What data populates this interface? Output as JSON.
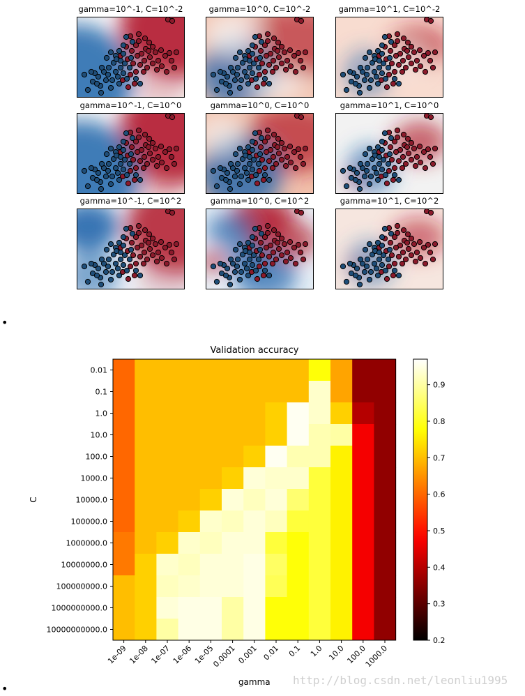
{
  "rbf_panels": {
    "rows": [
      [
        {
          "title": "gamma=10^-1, C=10^-2"
        },
        {
          "title": "gamma=10^0, C=10^-2"
        },
        {
          "title": "gamma=10^1, C=10^-2"
        }
      ],
      [
        {
          "title": "gamma=10^-1, C=10^0"
        },
        {
          "title": "gamma=10^0, C=10^0"
        },
        {
          "title": "gamma=10^1, C=10^0"
        }
      ],
      [
        {
          "title": "gamma=10^-1, C=10^2"
        },
        {
          "title": "gamma=10^0, C=10^2"
        },
        {
          "title": "gamma=10^1, C=10^2"
        }
      ]
    ],
    "class_colors": {
      "positive": "#8b1a2b",
      "negative": "#1f4e79"
    },
    "background_colors": {
      "red": "#b2182b",
      "white": "#f7f7f7",
      "blue": "#2166ac"
    }
  },
  "chart_data": {
    "type": "heatmap",
    "title": "Validation accuracy",
    "xlabel": "gamma",
    "ylabel": "C",
    "x": [
      "1e-09",
      "1e-08",
      "1e-07",
      "1e-06",
      "1e-05",
      "0.0001",
      "0.001",
      "0.01",
      "0.1",
      "1.0",
      "10.0",
      "100.0",
      "1000.0"
    ],
    "y": [
      "0.01",
      "0.1",
      "1.0",
      "10.0",
      "100.0",
      "1000.0",
      "10000.0",
      "100000.0",
      "1000000.0",
      "10000000.0",
      "100000000.0",
      "1000000000.0",
      "10000000000.0"
    ],
    "values": [
      [
        0.6,
        0.7,
        0.7,
        0.7,
        0.7,
        0.7,
        0.7,
        0.7,
        0.7,
        0.78,
        0.67,
        0.36,
        0.36
      ],
      [
        0.6,
        0.7,
        0.7,
        0.7,
        0.7,
        0.7,
        0.7,
        0.7,
        0.7,
        0.93,
        0.67,
        0.36,
        0.36
      ],
      [
        0.6,
        0.7,
        0.7,
        0.7,
        0.7,
        0.7,
        0.7,
        0.72,
        0.96,
        0.93,
        0.72,
        0.4,
        0.36
      ],
      [
        0.6,
        0.7,
        0.7,
        0.7,
        0.7,
        0.7,
        0.7,
        0.72,
        0.96,
        0.91,
        0.9,
        0.47,
        0.36
      ],
      [
        0.6,
        0.7,
        0.7,
        0.7,
        0.7,
        0.7,
        0.72,
        0.96,
        0.91,
        0.91,
        0.76,
        0.47,
        0.36
      ],
      [
        0.6,
        0.7,
        0.7,
        0.7,
        0.7,
        0.72,
        0.94,
        0.93,
        0.93,
        0.82,
        0.76,
        0.47,
        0.36
      ],
      [
        0.6,
        0.7,
        0.7,
        0.7,
        0.72,
        0.94,
        0.92,
        0.94,
        0.86,
        0.82,
        0.76,
        0.47,
        0.36
      ],
      [
        0.6,
        0.7,
        0.7,
        0.72,
        0.93,
        0.92,
        0.94,
        0.92,
        0.82,
        0.82,
        0.76,
        0.47,
        0.36
      ],
      [
        0.62,
        0.7,
        0.72,
        0.93,
        0.92,
        0.94,
        0.94,
        0.82,
        0.78,
        0.82,
        0.76,
        0.47,
        0.36
      ],
      [
        0.62,
        0.72,
        0.93,
        0.92,
        0.94,
        0.94,
        0.95,
        0.85,
        0.78,
        0.82,
        0.76,
        0.47,
        0.36
      ],
      [
        0.7,
        0.72,
        0.92,
        0.93,
        0.94,
        0.94,
        0.95,
        0.84,
        0.78,
        0.82,
        0.76,
        0.47,
        0.36
      ],
      [
        0.7,
        0.72,
        0.94,
        0.95,
        0.95,
        0.9,
        0.95,
        0.78,
        0.78,
        0.82,
        0.76,
        0.47,
        0.36
      ],
      [
        0.7,
        0.72,
        0.9,
        0.95,
        0.95,
        0.9,
        0.95,
        0.78,
        0.78,
        0.82,
        0.76,
        0.47,
        0.36
      ]
    ],
    "colorbar": {
      "min": 0.2,
      "max": 0.97,
      "ticks": [
        0.2,
        0.3,
        0.4,
        0.5,
        0.6,
        0.7,
        0.8,
        0.9
      ],
      "colormap": "hot"
    }
  },
  "watermark": "http://blog.csdn.net/leonliu1995"
}
